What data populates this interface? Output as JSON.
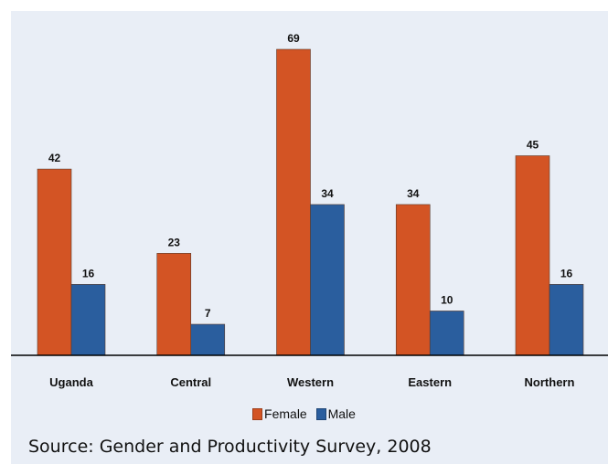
{
  "chart_data": {
    "type": "bar",
    "categories": [
      "Uganda",
      "Central",
      "Western",
      "Eastern",
      "Northern"
    ],
    "series": [
      {
        "name": "Female",
        "values": [
          42,
          23,
          69,
          34,
          45
        ],
        "color": "#d35424"
      },
      {
        "name": "Male",
        "values": [
          16,
          7,
          34,
          10,
          16
        ],
        "color": "#2a5e9e"
      }
    ],
    "title": "",
    "xlabel": "",
    "ylabel": "",
    "ylim": [
      0,
      70
    ],
    "grid": false,
    "legend_position": "bottom",
    "data_labels": true
  },
  "source": "Source: Gender and Productivity Survey, 2008",
  "colors": {
    "background": "#e9eef6",
    "axis": "#000000"
  }
}
